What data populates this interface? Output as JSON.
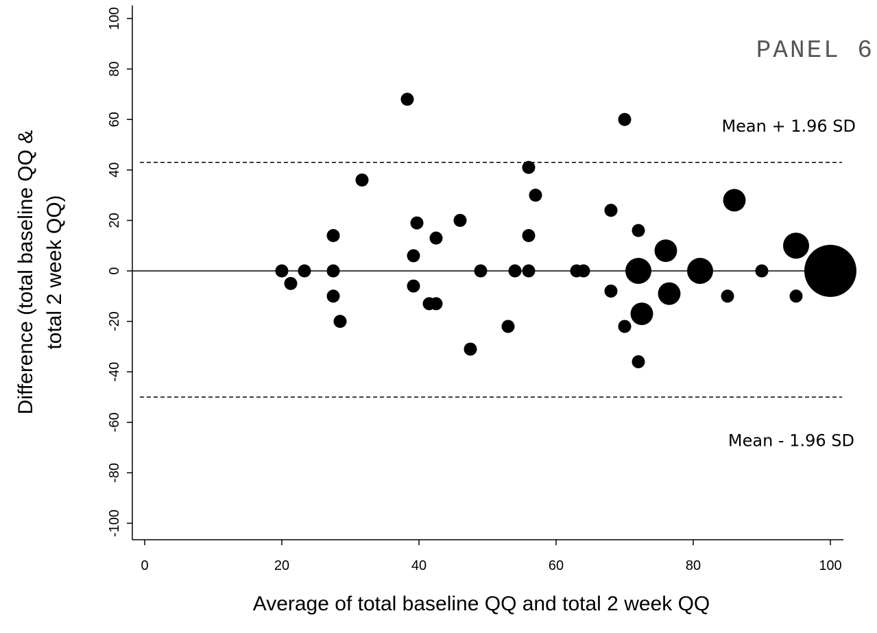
{
  "chart_data": {
    "type": "scatter",
    "panel_label": "PANEL 6",
    "xlabel": "Average of total baseline QQ and total 2 week QQ",
    "ylabel_lines": [
      "Difference (total baseline QQ &",
      "total 2 week  QQ)"
    ],
    "xlim": [
      -4,
      104
    ],
    "ylim": [
      -103,
      106
    ],
    "x_ticks": [
      {
        "value": 0,
        "label": "0"
      },
      {
        "value": 20,
        "label": "20"
      },
      {
        "value": 40,
        "label": "40"
      },
      {
        "value": 60,
        "label": "60"
      },
      {
        "value": 80,
        "label": "80"
      },
      {
        "value": 100,
        "label": "100"
      }
    ],
    "y_ticks": [
      {
        "value": -100,
        "label": "-100"
      },
      {
        "value": -80,
        "label": "-80"
      },
      {
        "value": -60,
        "label": "-60"
      },
      {
        "value": -40,
        "label": "-40"
      },
      {
        "value": -20,
        "label": "-20"
      },
      {
        "value": 0,
        "label": "0"
      },
      {
        "value": 20,
        "label": "20"
      },
      {
        "value": 40,
        "label": "40"
      },
      {
        "value": 60,
        "label": "60"
      },
      {
        "value": 80,
        "label": "80"
      },
      {
        "value": 100,
        "label": "100"
      }
    ],
    "grid": false,
    "mean_line": 0,
    "upper_limit": {
      "value": 43,
      "label": "Mean + 1.96 SD"
    },
    "lower_limit": {
      "value": -50,
      "label": "Mean - 1.96 SD"
    },
    "points": [
      {
        "x": 20,
        "y": 0,
        "n": 1
      },
      {
        "x": 21.3,
        "y": -5,
        "n": 1
      },
      {
        "x": 23.3,
        "y": 0,
        "n": 1
      },
      {
        "x": 27.5,
        "y": 14,
        "n": 1
      },
      {
        "x": 27.5,
        "y": 0,
        "n": 1
      },
      {
        "x": 27.5,
        "y": -10,
        "n": 1
      },
      {
        "x": 28.5,
        "y": -20,
        "n": 1
      },
      {
        "x": 31.7,
        "y": 36,
        "n": 1
      },
      {
        "x": 38.3,
        "y": 68,
        "n": 1
      },
      {
        "x": 39.2,
        "y": 6,
        "n": 1
      },
      {
        "x": 39.2,
        "y": -6,
        "n": 1
      },
      {
        "x": 39.7,
        "y": 19,
        "n": 1
      },
      {
        "x": 41.5,
        "y": -13,
        "n": 1
      },
      {
        "x": 42.5,
        "y": 13,
        "n": 1
      },
      {
        "x": 42.5,
        "y": -13,
        "n": 1
      },
      {
        "x": 46,
        "y": 20,
        "n": 1
      },
      {
        "x": 47.5,
        "y": -31,
        "n": 1
      },
      {
        "x": 49,
        "y": 0,
        "n": 1
      },
      {
        "x": 53,
        "y": -22,
        "n": 1
      },
      {
        "x": 54,
        "y": 0,
        "n": 1
      },
      {
        "x": 56,
        "y": 41,
        "n": 1
      },
      {
        "x": 56,
        "y": 14,
        "n": 1
      },
      {
        "x": 56,
        "y": 0,
        "n": 1
      },
      {
        "x": 57,
        "y": 30,
        "n": 1
      },
      {
        "x": 63,
        "y": 0,
        "n": 1
      },
      {
        "x": 64,
        "y": 0,
        "n": 1
      },
      {
        "x": 68,
        "y": 24,
        "n": 1
      },
      {
        "x": 68,
        "y": -8,
        "n": 1
      },
      {
        "x": 70,
        "y": 60,
        "n": 1
      },
      {
        "x": 70,
        "y": -22,
        "n": 1
      },
      {
        "x": 72,
        "y": 16,
        "n": 1
      },
      {
        "x": 72,
        "y": 0,
        "n": 4
      },
      {
        "x": 72,
        "y": -36,
        "n": 1
      },
      {
        "x": 72.5,
        "y": -17,
        "n": 3
      },
      {
        "x": 76,
        "y": 8,
        "n": 3
      },
      {
        "x": 76.5,
        "y": -9,
        "n": 3
      },
      {
        "x": 81,
        "y": 0,
        "n": 4
      },
      {
        "x": 85,
        "y": -10,
        "n": 1
      },
      {
        "x": 86,
        "y": 28,
        "n": 3
      },
      {
        "x": 90,
        "y": 0,
        "n": 1
      },
      {
        "x": 95,
        "y": 10,
        "n": 4
      },
      {
        "x": 95,
        "y": -10,
        "n": 1
      },
      {
        "x": 100,
        "y": 0,
        "n": 16
      }
    ]
  }
}
